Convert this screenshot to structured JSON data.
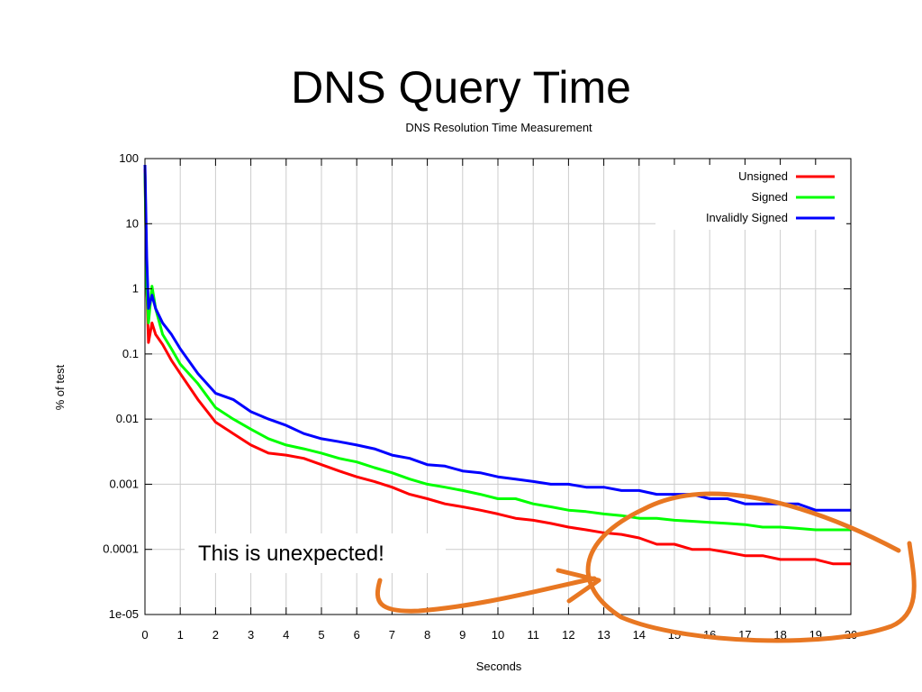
{
  "slide": {
    "title": "DNS Query Time"
  },
  "chart_data": {
    "type": "line",
    "title": "DNS Resolution Time Measurement",
    "xlabel": "Seconds",
    "ylabel": "% of test",
    "xlim": [
      0,
      20
    ],
    "ylim": [
      1e-05,
      100
    ],
    "yscale": "log",
    "grid": true,
    "legend_position": "top-right",
    "x_ticks": [
      "0",
      "1",
      "2",
      "3",
      "4",
      "5",
      "6",
      "7",
      "8",
      "9",
      "10",
      "11",
      "12",
      "13",
      "14",
      "15",
      "16",
      "17",
      "18",
      "19",
      "20"
    ],
    "y_ticks": [
      {
        "value": 100,
        "label": "100"
      },
      {
        "value": 10,
        "label": "10"
      },
      {
        "value": 1,
        "label": "1"
      },
      {
        "value": 0.1,
        "label": "0.1"
      },
      {
        "value": 0.01,
        "label": "0.01"
      },
      {
        "value": 0.001,
        "label": "0.001"
      },
      {
        "value": 0.0001,
        "label": "0.0001"
      },
      {
        "value": 1e-05,
        "label": "1e-05"
      }
    ],
    "x": [
      0,
      0.05,
      0.1,
      0.2,
      0.3,
      0.5,
      0.75,
      1,
      1.5,
      2,
      2.5,
      3,
      3.5,
      4,
      4.5,
      5,
      5.5,
      6,
      6.5,
      7,
      7.5,
      8,
      8.5,
      9,
      9.5,
      10,
      10.5,
      11,
      11.5,
      12,
      12.5,
      13,
      13.5,
      14,
      14.5,
      15,
      15.5,
      16,
      16.5,
      17,
      17.5,
      18,
      18.5,
      19,
      19.5,
      20
    ],
    "series": [
      {
        "name": "Unsigned",
        "color": "#ff0000",
        "values": [
          70,
          1,
          0.15,
          0.3,
          0.2,
          0.14,
          0.08,
          0.05,
          0.02,
          0.009,
          0.006,
          0.004,
          0.003,
          0.0028,
          0.0025,
          0.002,
          0.0016,
          0.0013,
          0.0011,
          0.0009,
          0.0007,
          0.0006,
          0.0005,
          0.00045,
          0.0004,
          0.00035,
          0.0003,
          0.00028,
          0.00025,
          0.00022,
          0.0002,
          0.00018,
          0.00017,
          0.00015,
          0.00012,
          0.00012,
          0.0001,
          0.0001,
          9e-05,
          8e-05,
          8e-05,
          7e-05,
          7e-05,
          7e-05,
          6e-05,
          6e-05
        ]
      },
      {
        "name": "Signed",
        "color": "#00ff00",
        "values": [
          60,
          1,
          0.3,
          1.1,
          0.5,
          0.2,
          0.12,
          0.07,
          0.035,
          0.015,
          0.01,
          0.007,
          0.005,
          0.004,
          0.0035,
          0.003,
          0.0025,
          0.0022,
          0.0018,
          0.0015,
          0.0012,
          0.001,
          0.0009,
          0.0008,
          0.0007,
          0.0006,
          0.0006,
          0.0005,
          0.00045,
          0.0004,
          0.00038,
          0.00035,
          0.00033,
          0.0003,
          0.0003,
          0.00028,
          0.00027,
          0.00026,
          0.00025,
          0.00024,
          0.00022,
          0.00022,
          0.00021,
          0.0002,
          0.0002,
          0.0002
        ]
      },
      {
        "name": "Invalidly Signed",
        "color": "#0000ff",
        "values": [
          80,
          3,
          0.5,
          0.8,
          0.5,
          0.3,
          0.2,
          0.12,
          0.05,
          0.025,
          0.02,
          0.013,
          0.01,
          0.008,
          0.006,
          0.005,
          0.0045,
          0.004,
          0.0035,
          0.0028,
          0.0025,
          0.002,
          0.0019,
          0.0016,
          0.0015,
          0.0013,
          0.0012,
          0.0011,
          0.001,
          0.001,
          0.0009,
          0.0009,
          0.0008,
          0.0008,
          0.0007,
          0.0007,
          0.0007,
          0.0006,
          0.0006,
          0.0005,
          0.0005,
          0.0005,
          0.0005,
          0.0004,
          0.0004,
          0.0004
        ]
      }
    ],
    "annotations": [
      {
        "text": "This is unexpected!"
      }
    ]
  }
}
